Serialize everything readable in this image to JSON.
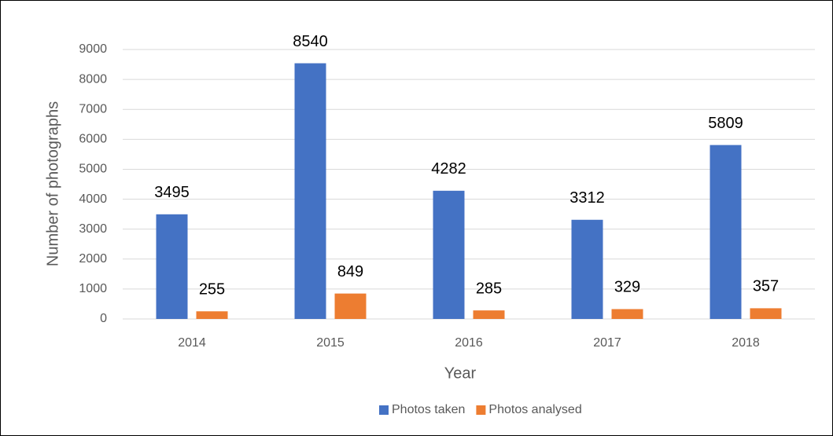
{
  "chart_data": {
    "type": "bar",
    "categories": [
      "2014",
      "2015",
      "2016",
      "2017",
      "2018"
    ],
    "series": [
      {
        "name": "Photos taken",
        "color": "#4472c4",
        "values": [
          3495,
          8540,
          4282,
          3312,
          5809
        ]
      },
      {
        "name": "Photos analysed",
        "color": "#ed7d31",
        "values": [
          255,
          849,
          285,
          329,
          357
        ]
      }
    ],
    "ylim": [
      0,
      9000
    ],
    "yticks": [
      0,
      1000,
      2000,
      3000,
      4000,
      5000,
      6000,
      7000,
      8000,
      9000
    ],
    "ylabel": "Number of photographs",
    "xlabel": "Year",
    "grid": true,
    "legend": "bottom"
  }
}
